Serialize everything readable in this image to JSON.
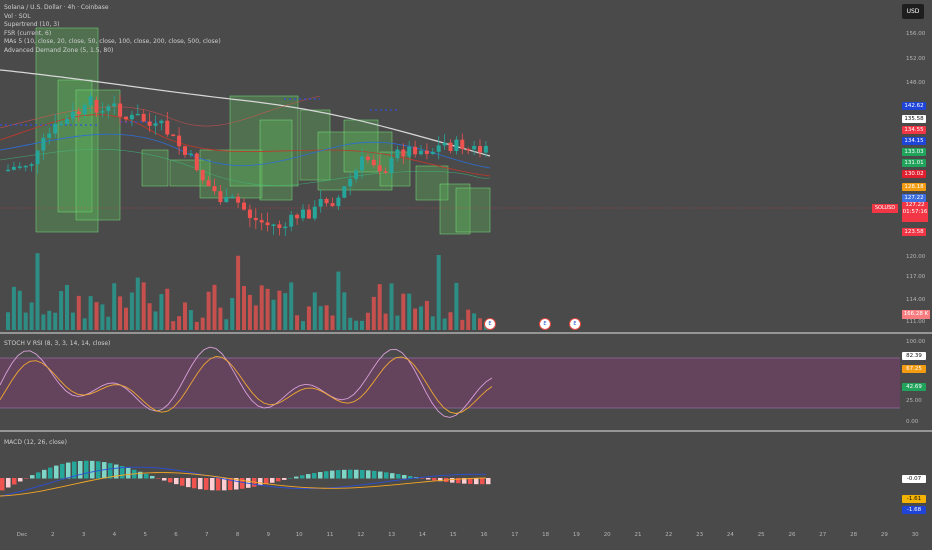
{
  "legend": {
    "title": "Solana / U.S. Dollar · 4h · Coinbase",
    "lines": [
      "Vol · SOL",
      "Supertrend (10, 3)",
      "FSR (current, 6)",
      "MAs 5 (10, close, 20, close, 50, close, 100, close, 200, close, 500, close)",
      "Advanced Demand Zone (5, 1.5, 80)"
    ]
  },
  "currency": "USD",
  "symbol": "SOLUSD",
  "current_price": "127.22",
  "countdown": "01:57:16",
  "volume_badge": "166.28 K",
  "price_axis": {
    "ticks": [
      "156.00",
      "152.00",
      "148.00",
      "120.00",
      "117.00",
      "114.00",
      "111.00"
    ],
    "badges": [
      {
        "label": "142.62",
        "bg": "#1e44d8",
        "fg": "#ffffff"
      },
      {
        "label": "135.58",
        "bg": "#ffffff",
        "fg": "#111111"
      },
      {
        "label": "134.55",
        "bg": "#f23645",
        "fg": "#ffffff"
      },
      {
        "label": "134.15",
        "bg": "#1e44d8",
        "fg": "#ffffff"
      },
      {
        "label": "133.03",
        "bg": "#20a35b",
        "fg": "#ffffff"
      },
      {
        "label": "131.01",
        "bg": "#20a35b",
        "fg": "#ffffff"
      },
      {
        "label": "130.02",
        "bg": "#e01f2f",
        "fg": "#ffffff"
      },
      {
        "label": "128.18",
        "bg": "#f39c12",
        "fg": "#ffffff"
      },
      {
        "label": "127.22",
        "bg": "#3d6fe0",
        "fg": "#ffffff"
      },
      {
        "label": "123.58",
        "bg": "#f23645",
        "fg": "#ffffff"
      }
    ]
  },
  "stoch": {
    "title": "STOCH V RSI (8, 3, 3, 14, 14, close)",
    "ticks": [
      "100.00",
      "25.00",
      "0.00"
    ],
    "badges": [
      {
        "label": "82.39",
        "bg": "#ffffff",
        "fg": "#111111"
      },
      {
        "label": "67.25",
        "bg": "#f39c12",
        "fg": "#ffffff"
      },
      {
        "label": "42.69",
        "bg": "#20a35b",
        "fg": "#ffffff"
      }
    ]
  },
  "macd": {
    "title": "MACD (12, 26, close)",
    "badges": [
      {
        "label": "-0.07",
        "bg": "#ffffff",
        "fg": "#111111"
      },
      {
        "label": "-1.61",
        "bg": "#f5b301",
        "fg": "#111111"
      },
      {
        "label": "-1.68",
        "bg": "#1e44d8",
        "fg": "#ffffff"
      }
    ]
  },
  "time_axis": [
    "Dec",
    "2",
    "3",
    "4",
    "5",
    "6",
    "7",
    "8",
    "9",
    "10",
    "11",
    "12",
    "13",
    "14",
    "15",
    "16",
    "17",
    "18",
    "19",
    "20",
    "21",
    "22",
    "23",
    "24",
    "25",
    "26",
    "27",
    "28",
    "29",
    "30"
  ],
  "events": [
    {
      "label": "E"
    },
    {
      "label": "E"
    },
    {
      "label": "E"
    }
  ],
  "colors": {
    "background": "#4a4a4a",
    "up": "#26a69a",
    "down": "#ef5350",
    "zone": "#5cb85c",
    "stoch_band": "#7a3f6e"
  }
}
